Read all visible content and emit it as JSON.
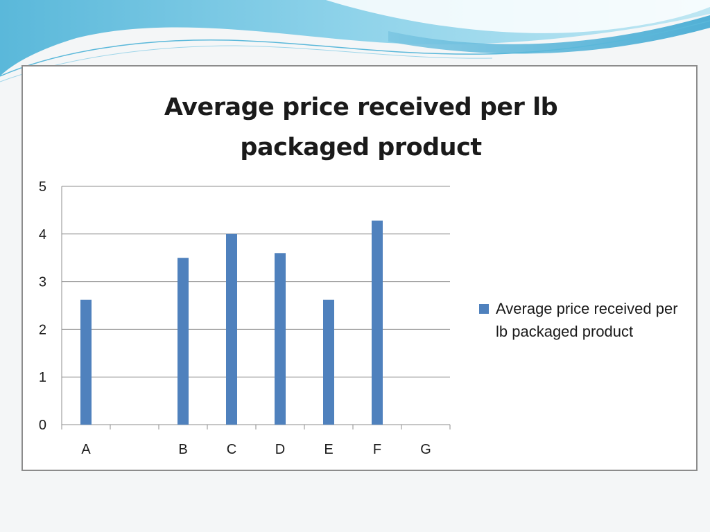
{
  "chart_data": {
    "type": "bar",
    "title_lines": [
      "Average price received per lb",
      "packaged product"
    ],
    "categories": [
      "A",
      "",
      "B",
      "C",
      "D",
      "E",
      "F",
      "G"
    ],
    "series": [
      {
        "name": "Average price received per lb packaged product",
        "values": [
          2.62,
          null,
          3.5,
          4.0,
          3.6,
          2.62,
          4.28,
          null
        ]
      }
    ],
    "yticks": [
      "0",
      "1",
      "2",
      "3",
      "4",
      "5"
    ],
    "ylim": [
      0,
      5
    ],
    "grid": true,
    "legend_position": "right",
    "colors": {
      "bar": "#4f81bd",
      "grid": "#8c8c8c",
      "axis": "#8c8c8c"
    }
  },
  "legend": {
    "label": "Average price received per lb packaged product"
  }
}
